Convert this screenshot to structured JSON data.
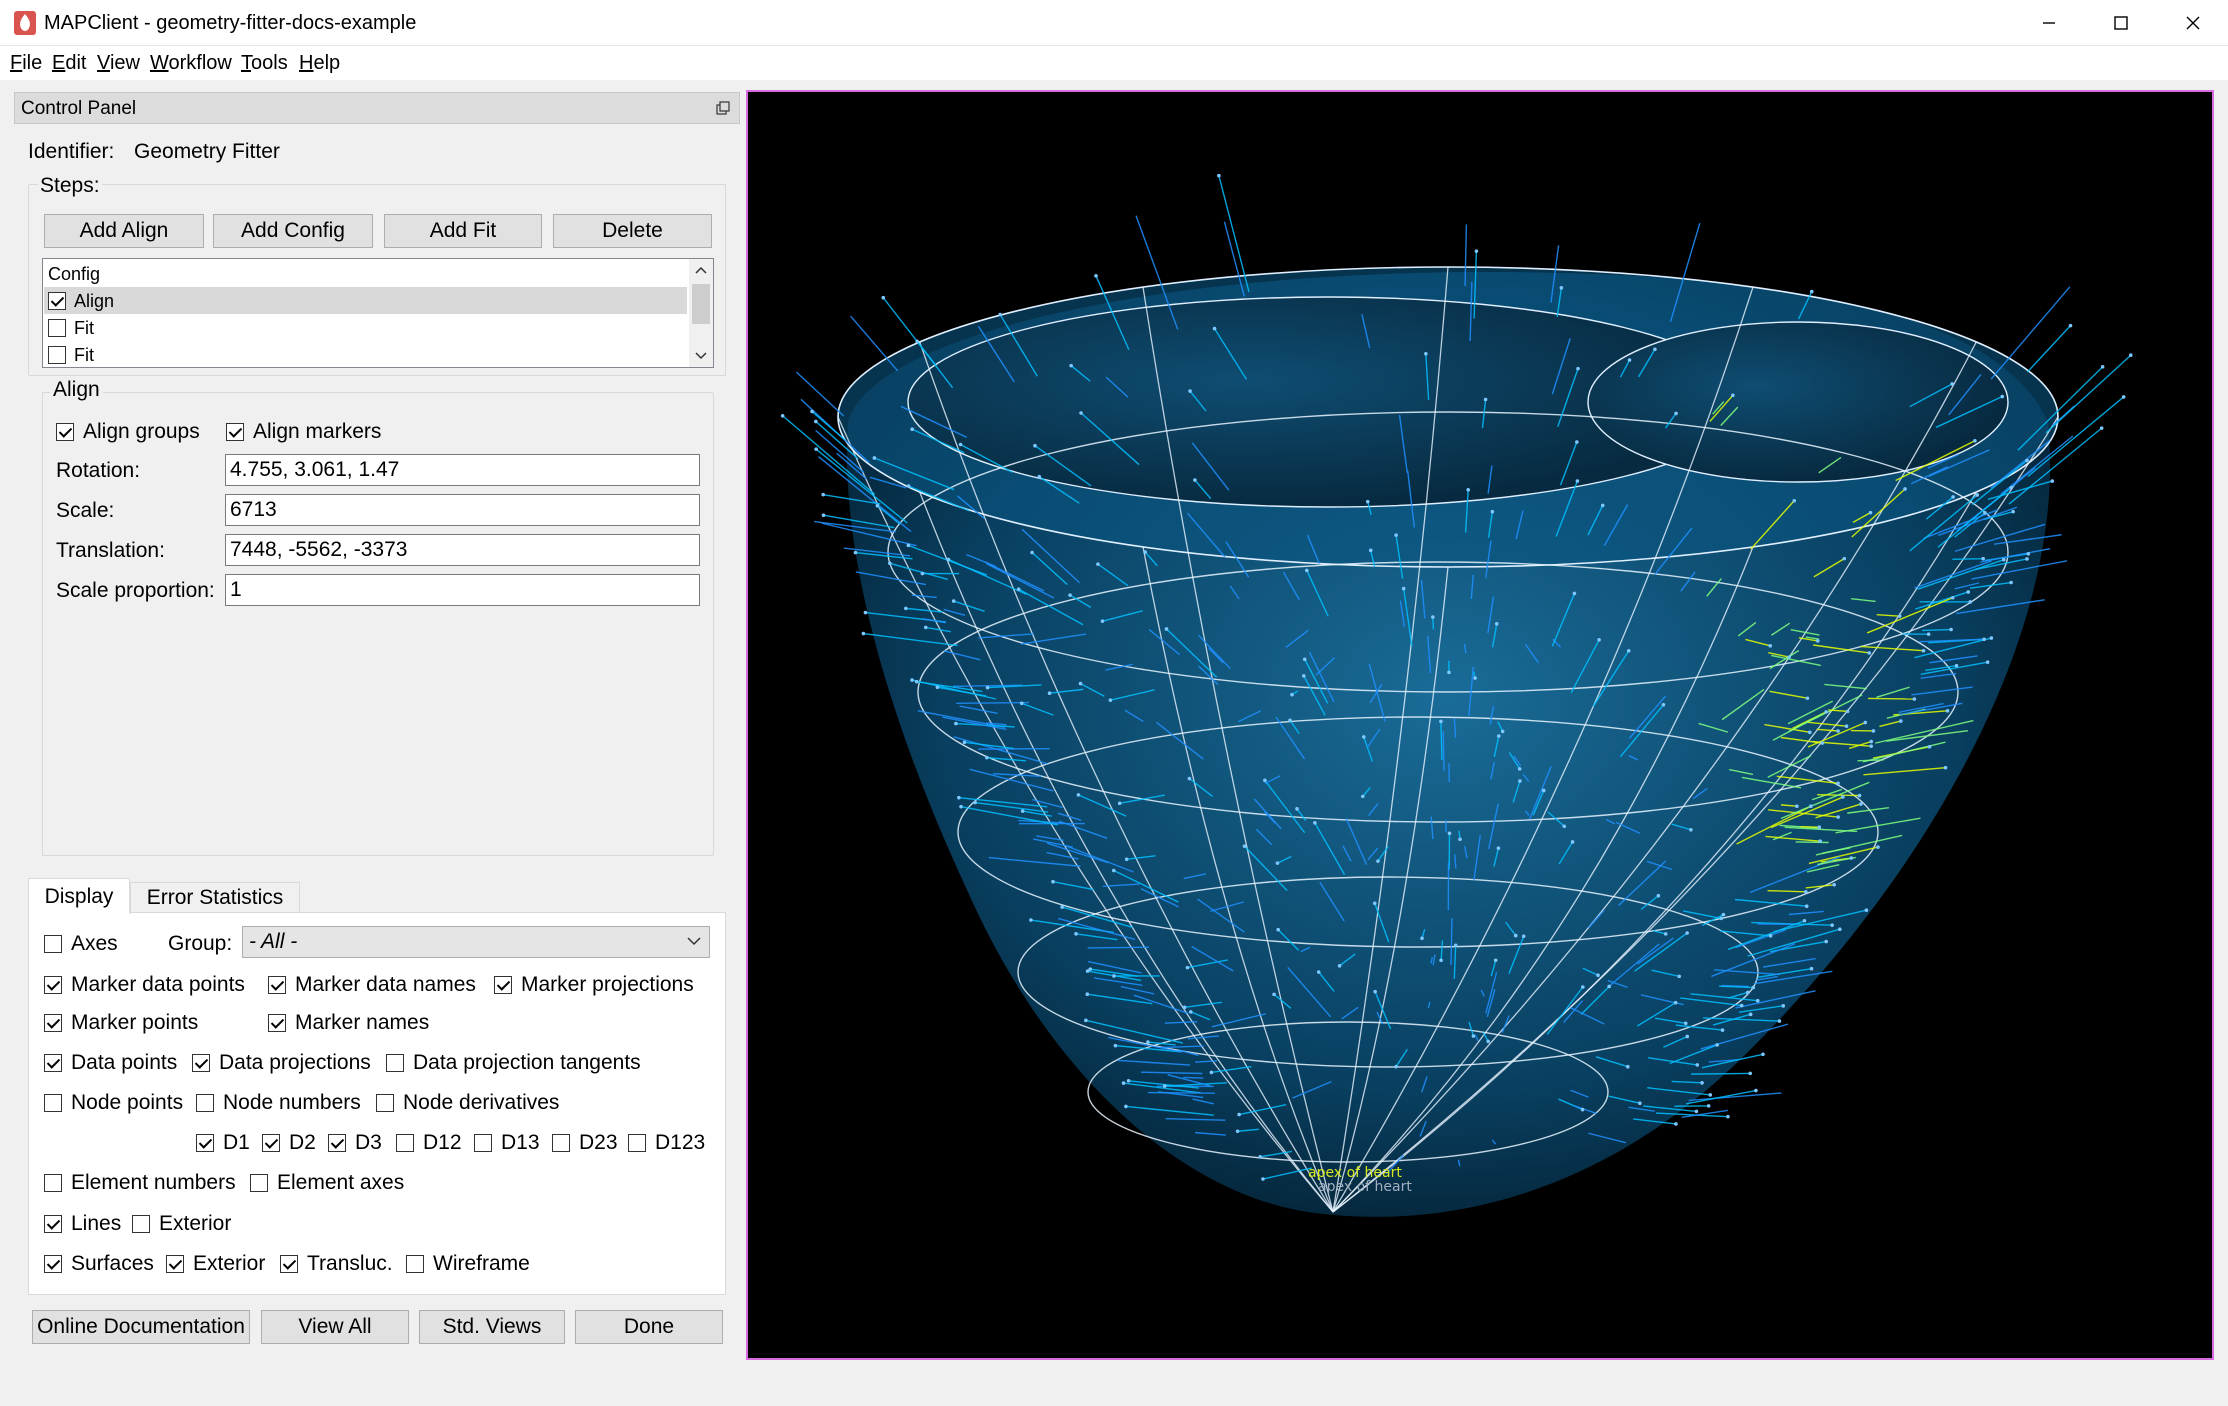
{
  "window": {
    "title": "MAPClient - geometry-fitter-docs-example"
  },
  "menu": [
    {
      "letter": "F",
      "rest": "ile"
    },
    {
      "letter": "E",
      "rest": "dit"
    },
    {
      "letter": "V",
      "rest": "iew"
    },
    {
      "letter": "W",
      "rest": "orkflow"
    },
    {
      "letter": "T",
      "rest": "ools"
    },
    {
      "letter": "H",
      "rest": "elp"
    }
  ],
  "control_panel": {
    "title": "Control Panel",
    "identifier_label": "Identifier:",
    "identifier_value": "Geometry Fitter",
    "steps_label": "Steps:",
    "buttons": {
      "add_align": "Add Align",
      "add_config": "Add Config",
      "add_fit": "Add Fit",
      "delete": "Delete"
    },
    "steps": [
      {
        "label": "Config",
        "checkable": false,
        "checked": false,
        "selected": false
      },
      {
        "label": "Align",
        "checkable": true,
        "checked": true,
        "selected": true
      },
      {
        "label": "Fit",
        "checkable": true,
        "checked": false,
        "selected": false
      },
      {
        "label": "Fit",
        "checkable": true,
        "checked": false,
        "selected": false
      }
    ],
    "align": {
      "title": "Align",
      "align_groups": {
        "label": "Align groups",
        "checked": true
      },
      "align_markers": {
        "label": "Align markers",
        "checked": true
      },
      "rotation": {
        "label": "Rotation:",
        "value": "4.755, 3.061, 1.47"
      },
      "scale": {
        "label": "Scale:",
        "value": "6713"
      },
      "translation": {
        "label": "Translation:",
        "value": "7448, -5562, -3373"
      },
      "scale_proportion": {
        "label": "Scale proportion:",
        "value": "1"
      }
    },
    "tabs": {
      "display": "Display",
      "error_statistics": "Error Statistics",
      "active": "display"
    },
    "display": {
      "axes": {
        "label": "Axes",
        "checked": false
      },
      "group_label": "Group:",
      "group_value": "- All -",
      "marker_data_points": {
        "label": "Marker data points",
        "checked": true
      },
      "marker_data_names": {
        "label": "Marker data names",
        "checked": true
      },
      "marker_projections": {
        "label": "Marker projections",
        "checked": true
      },
      "marker_points": {
        "label": "Marker points",
        "checked": true
      },
      "marker_names": {
        "label": "Marker names",
        "checked": true
      },
      "data_points": {
        "label": "Data points",
        "checked": true
      },
      "data_projections": {
        "label": "Data projections",
        "checked": true
      },
      "data_projection_tangents": {
        "label": "Data projection tangents",
        "checked": false
      },
      "node_points": {
        "label": "Node points",
        "checked": false
      },
      "node_numbers": {
        "label": "Node numbers",
        "checked": false
      },
      "node_derivatives": {
        "label": "Node derivatives",
        "checked": false
      },
      "d1": {
        "label": "D1",
        "checked": true
      },
      "d2": {
        "label": "D2",
        "checked": true
      },
      "d3": {
        "label": "D3",
        "checked": true
      },
      "d12": {
        "label": "D12",
        "checked": false
      },
      "d13": {
        "label": "D13",
        "checked": false
      },
      "d23": {
        "label": "D23",
        "checked": false
      },
      "d123": {
        "label": "D123",
        "checked": false
      },
      "element_numbers": {
        "label": "Element numbers",
        "checked": false
      },
      "element_axes": {
        "label": "Element axes",
        "checked": false
      },
      "lines": {
        "label": "Lines",
        "checked": true
      },
      "lines_exterior": {
        "label": "Exterior",
        "checked": false
      },
      "surfaces": {
        "label": "Surfaces",
        "checked": true
      },
      "surfaces_exterior": {
        "label": "Exterior",
        "checked": true
      },
      "transluc": {
        "label": "Transluc.",
        "checked": true
      },
      "wireframe": {
        "label": "Wireframe",
        "checked": false
      }
    },
    "bottom_buttons": {
      "online_documentation": "Online Documentation",
      "view_all": "View All",
      "std_views": "Std. Views",
      "done": "Done"
    }
  },
  "viewport": {
    "marker_labels": [
      "apex of heart",
      "apex of heart"
    ],
    "colors": {
      "background": "#000000",
      "border": "#d86be0",
      "surface": "#0e5f8a",
      "lines": "#ffffff",
      "projections": [
        "#00bfff",
        "#1e90ff",
        "#7fff7f",
        "#e6ff00"
      ]
    }
  }
}
